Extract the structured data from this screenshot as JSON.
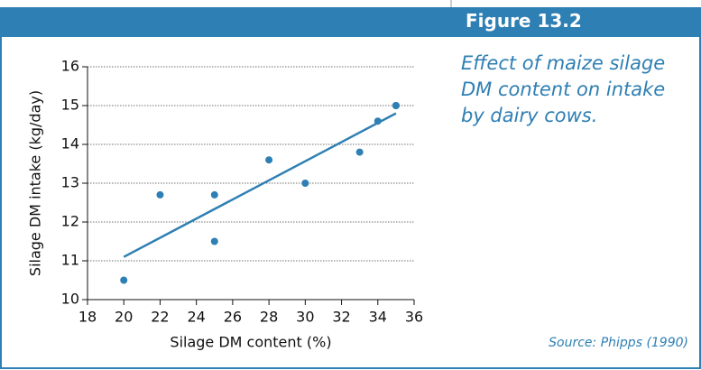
{
  "chart_data": {
    "type": "scatter",
    "figure_label": "Figure 13.2",
    "caption": "Effect of maize silage DM content on intake by dairy cows.",
    "source": "Source: Phipps (1990)",
    "xlabel": "Silage DM content (%)",
    "ylabel": "Silage DM intake (kg/day)",
    "series": [
      {
        "color": "#2e7fb3",
        "x": [
          20,
          22,
          25,
          25,
          28,
          30,
          33,
          34,
          35,
          35
        ],
        "values": [
          10.5,
          12.7,
          12.7,
          11.5,
          13.6,
          13.0,
          13.8,
          14.6,
          15.0,
          15.0
        ]
      }
    ],
    "trendline": {
      "color": "#2e7fb3",
      "x": [
        20,
        35
      ],
      "values": [
        11.1,
        14.8
      ]
    },
    "xlim": [
      18,
      36
    ],
    "xticks": [
      18,
      20,
      22,
      24,
      26,
      28,
      30,
      32,
      34,
      36
    ],
    "ylim": [
      10,
      16
    ],
    "yticks": [
      10,
      11,
      12,
      13,
      14,
      15,
      16
    ],
    "grid": true
  }
}
